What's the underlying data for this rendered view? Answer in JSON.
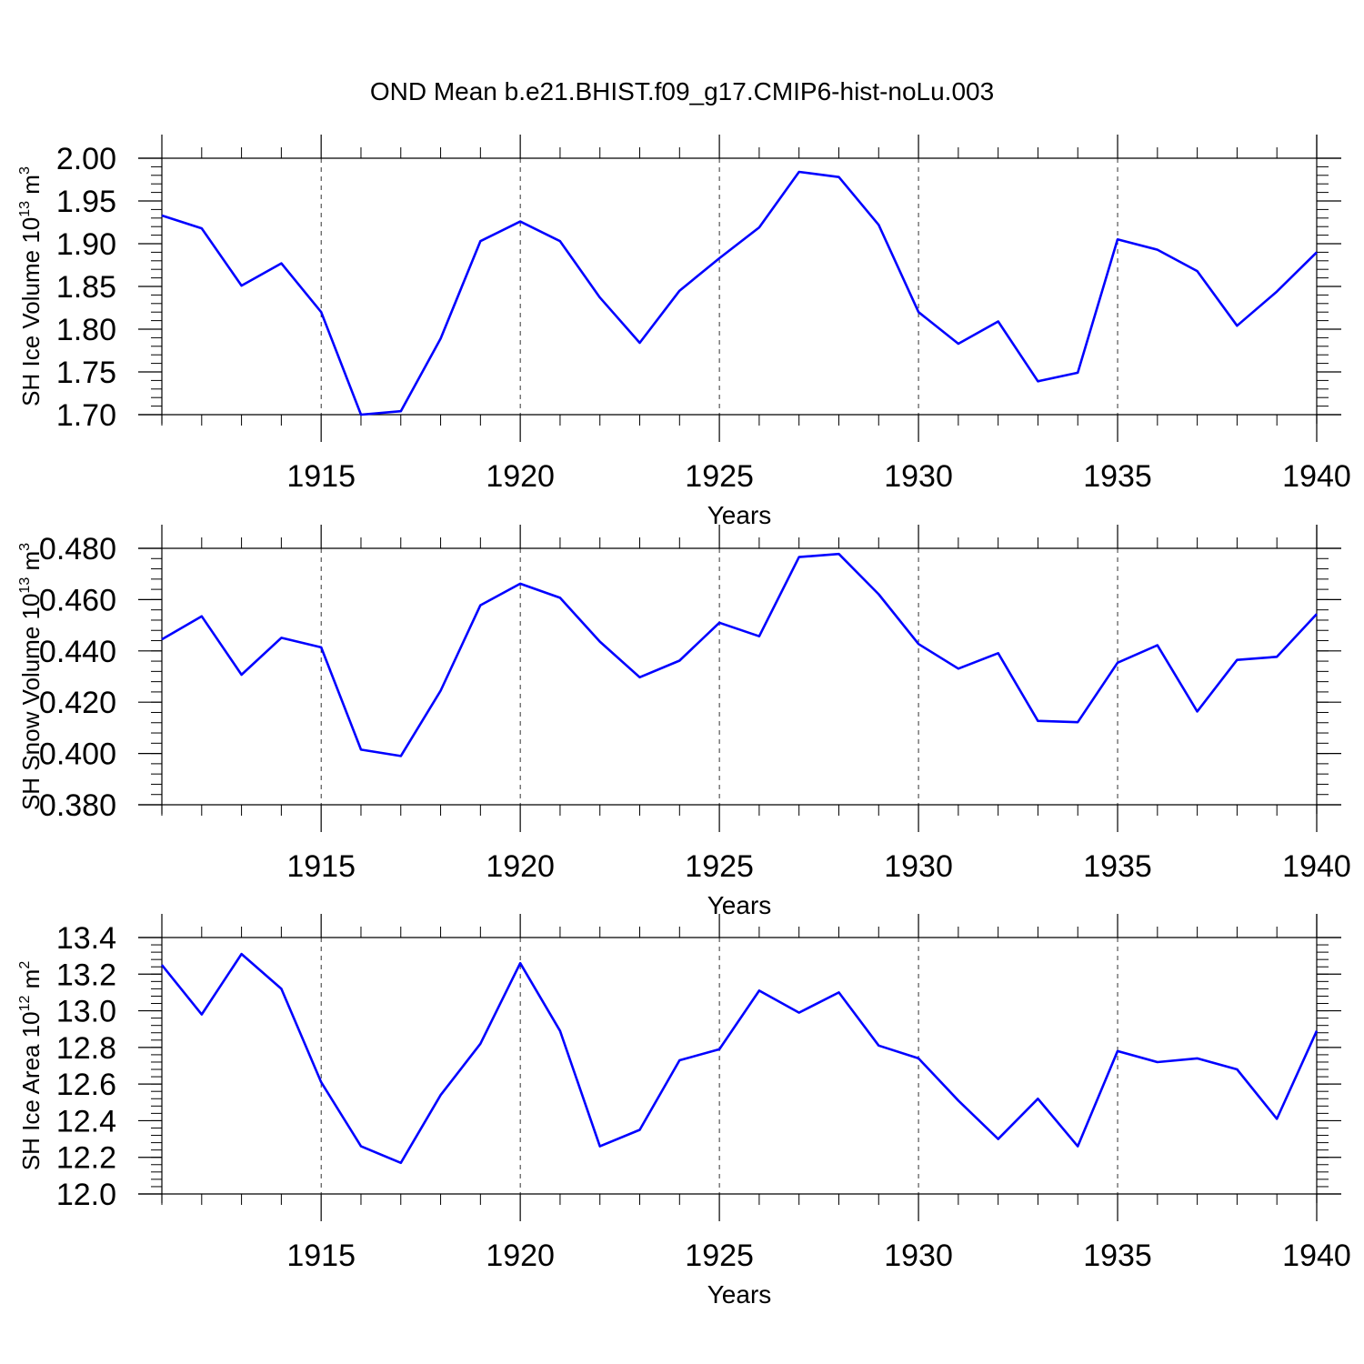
{
  "title": "OND Mean b.e21.BHIST.f09_g17.CMIP6-hist-noLu.003",
  "colors": {
    "line": "#0000ff",
    "axis": "#000000",
    "grid": "#000000"
  },
  "chart_data": [
    {
      "type": "line",
      "ylabel": "SH Ice Volume 10",
      "ylabel_exp": "13",
      "ylabel_unit": " m",
      "ylabel_unit_exp": "3",
      "xlabel": "Years",
      "xlim": [
        1911,
        1940
      ],
      "ylim": [
        1.7,
        2.0
      ],
      "grid": "vertical dashed at major x ticks",
      "xticks": [
        1915,
        1920,
        1925,
        1930,
        1935,
        1940
      ],
      "xtick_labels": [
        "1915",
        "1920",
        "1925",
        "1930",
        "1935",
        "1940"
      ],
      "yticks": [
        1.7,
        1.75,
        1.8,
        1.85,
        1.9,
        1.95,
        2.0
      ],
      "ytick_labels": [
        "1.70",
        "1.75",
        "1.80",
        "1.85",
        "1.90",
        "1.95",
        "2.00"
      ],
      "yminor_step": 0.01,
      "x": [
        1911,
        1912,
        1913,
        1914,
        1915,
        1916,
        1917,
        1918,
        1919,
        1920,
        1921,
        1922,
        1923,
        1924,
        1925,
        1926,
        1927,
        1928,
        1929,
        1930,
        1931,
        1932,
        1933,
        1934,
        1935,
        1936,
        1937,
        1938,
        1939,
        1940
      ],
      "values": [
        1.933,
        1.918,
        1.851,
        1.877,
        1.82,
        1.7,
        1.704,
        1.789,
        1.903,
        1.926,
        1.903,
        1.837,
        1.784,
        1.845,
        1.883,
        1.919,
        1.984,
        1.978,
        1.922,
        1.82,
        1.783,
        1.809,
        1.739,
        1.749,
        1.905,
        1.893,
        1.868,
        1.804,
        1.844,
        1.89
      ]
    },
    {
      "type": "line",
      "ylabel": "SH Snow Volume 10",
      "ylabel_exp": "13",
      "ylabel_unit": " m",
      "ylabel_unit_exp": "3",
      "xlabel": "Years",
      "xlim": [
        1911,
        1940
      ],
      "ylim": [
        0.38,
        0.48
      ],
      "grid": "vertical dashed at major x ticks",
      "xticks": [
        1915,
        1920,
        1925,
        1930,
        1935,
        1940
      ],
      "xtick_labels": [
        "1915",
        "1920",
        "1925",
        "1930",
        "1935",
        "1940"
      ],
      "yticks": [
        0.38,
        0.4,
        0.42,
        0.44,
        0.46,
        0.48
      ],
      "ytick_labels": [
        "0.380",
        "0.400",
        "0.420",
        "0.440",
        "0.460",
        "0.480"
      ],
      "yminor_step": 0.004,
      "x": [
        1911,
        1912,
        1913,
        1914,
        1915,
        1916,
        1917,
        1918,
        1919,
        1920,
        1921,
        1922,
        1923,
        1924,
        1925,
        1926,
        1927,
        1928,
        1929,
        1930,
        1931,
        1932,
        1933,
        1934,
        1935,
        1936,
        1937,
        1938,
        1939,
        1940
      ],
      "values": [
        0.4445,
        0.4535,
        0.4307,
        0.4451,
        0.4414,
        0.4015,
        0.399,
        0.4245,
        0.4578,
        0.4662,
        0.4607,
        0.4436,
        0.4297,
        0.4362,
        0.451,
        0.4457,
        0.4766,
        0.4778,
        0.4621,
        0.4427,
        0.4331,
        0.4391,
        0.4127,
        0.4122,
        0.4354,
        0.4422,
        0.4164,
        0.4365,
        0.4377,
        0.4544
      ]
    },
    {
      "type": "line",
      "ylabel": "SH Ice Area 10",
      "ylabel_exp": "12",
      "ylabel_unit": " m",
      "ylabel_unit_exp": "2",
      "xlabel": "Years",
      "xlim": [
        1911,
        1940
      ],
      "ylim": [
        12.0,
        13.4
      ],
      "grid": "vertical dashed at major x ticks",
      "xticks": [
        1915,
        1920,
        1925,
        1930,
        1935,
        1940
      ],
      "xtick_labels": [
        "1915",
        "1920",
        "1925",
        "1930",
        "1935",
        "1940"
      ],
      "yticks": [
        12.0,
        12.2,
        12.4,
        12.6,
        12.8,
        13.0,
        13.2,
        13.4
      ],
      "ytick_labels": [
        "12.0",
        "12.2",
        "12.4",
        "12.6",
        "12.8",
        "13.0",
        "13.2",
        "13.4"
      ],
      "yminor_step": 0.04,
      "x": [
        1911,
        1912,
        1913,
        1914,
        1915,
        1916,
        1917,
        1918,
        1919,
        1920,
        1921,
        1922,
        1923,
        1924,
        1925,
        1926,
        1927,
        1928,
        1929,
        1930,
        1931,
        1932,
        1933,
        1934,
        1935,
        1936,
        1937,
        1938,
        1939,
        1940
      ],
      "values": [
        13.25,
        12.98,
        13.31,
        13.12,
        12.61,
        12.26,
        12.17,
        12.54,
        12.82,
        13.26,
        12.89,
        12.26,
        12.35,
        12.73,
        12.79,
        13.11,
        12.99,
        13.1,
        12.81,
        12.74,
        12.51,
        12.3,
        12.52,
        12.26,
        12.78,
        12.72,
        12.74,
        12.68,
        12.41,
        12.89
      ]
    }
  ]
}
